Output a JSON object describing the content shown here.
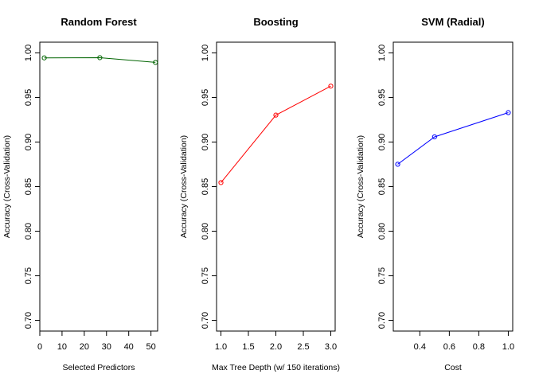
{
  "chart_data": [
    {
      "type": "line",
      "title": "Random Forest",
      "xlabel": "Selected Predictors",
      "ylabel": "Accuracy (Cross-Validation)",
      "x": [
        2,
        27,
        52
      ],
      "values": [
        0.9944,
        0.9946,
        0.9893
      ],
      "color": "#006400",
      "xlim": [
        0,
        53
      ],
      "ylim": [
        0.688,
        1.012
      ],
      "xticks": [
        0,
        10,
        20,
        30,
        40,
        50
      ],
      "xtick_labels": [
        "0",
        "10",
        "20",
        "30",
        "40",
        "50"
      ],
      "yticks": [
        0.7,
        0.75,
        0.8,
        0.85,
        0.9,
        0.95,
        1.0
      ],
      "ytick_labels": [
        "0.70",
        "0.75",
        "0.80",
        "0.85",
        "0.90",
        "0.95",
        "1.00"
      ],
      "grid": false,
      "marker": "open-circle"
    },
    {
      "type": "line",
      "title": "Boosting",
      "xlabel": "Max Tree Depth (w/ 150 iterations)",
      "ylabel": "Accuracy (Cross-Validation)",
      "x": [
        1,
        2,
        3
      ],
      "values": [
        0.8545,
        0.9302,
        0.9627
      ],
      "color": "#ff0000",
      "xlim": [
        0.92,
        3.08
      ],
      "ylim": [
        0.688,
        1.012
      ],
      "xticks": [
        1.0,
        1.5,
        2.0,
        2.5,
        3.0
      ],
      "xtick_labels": [
        "1.0",
        "1.5",
        "2.0",
        "2.5",
        "3.0"
      ],
      "yticks": [
        0.7,
        0.75,
        0.8,
        0.85,
        0.9,
        0.95,
        1.0
      ],
      "ytick_labels": [
        "0.70",
        "0.75",
        "0.80",
        "0.85",
        "0.90",
        "0.95",
        "1.00"
      ],
      "grid": false,
      "marker": "open-circle"
    },
    {
      "type": "line",
      "title": "SVM (Radial)",
      "xlabel": "Cost",
      "ylabel": "Accuracy (Cross-Validation)",
      "x": [
        0.25,
        0.5,
        1.0
      ],
      "values": [
        0.8751,
        0.9058,
        0.933
      ],
      "color": "#0000ff",
      "xlim": [
        0.22,
        1.03
      ],
      "ylim": [
        0.688,
        1.012
      ],
      "xticks": [
        0.4,
        0.6,
        0.8,
        1.0
      ],
      "xtick_labels": [
        "0.4",
        "0.6",
        "0.8",
        "1.0"
      ],
      "yticks": [
        0.7,
        0.75,
        0.8,
        0.85,
        0.9,
        0.95,
        1.0
      ],
      "ytick_labels": [
        "0.70",
        "0.75",
        "0.80",
        "0.85",
        "0.90",
        "0.95",
        "1.00"
      ],
      "grid": false,
      "marker": "open-circle"
    }
  ]
}
